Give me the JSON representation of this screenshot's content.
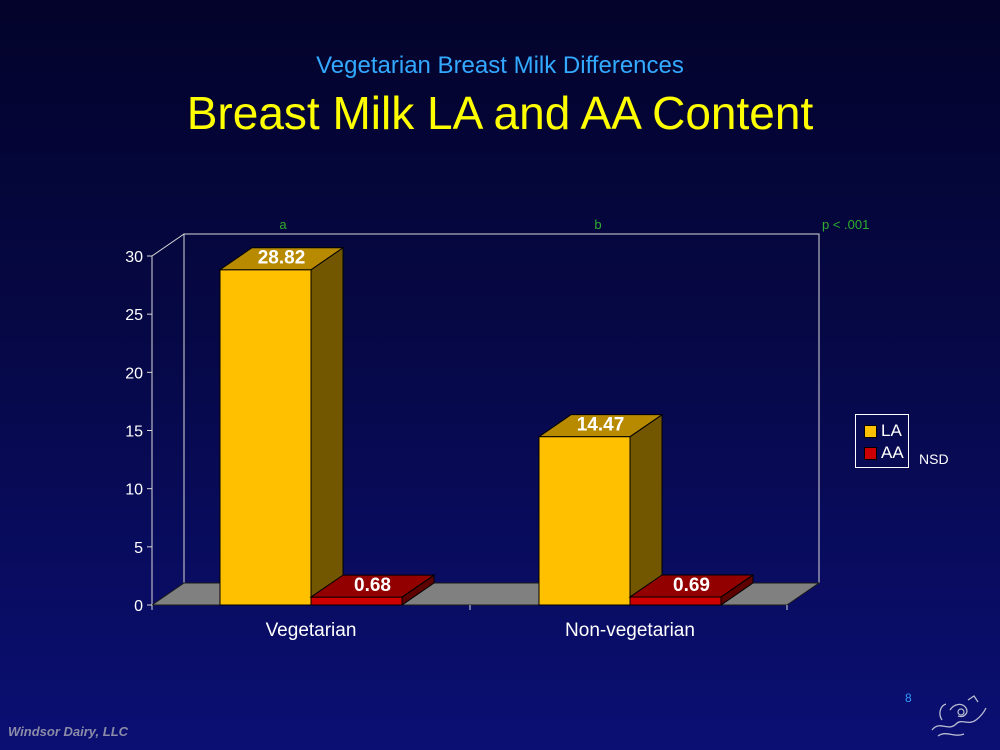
{
  "header": {
    "subtitle": "Vegetarian Breast Milk Differences",
    "title": "Breast Milk LA and AA Content"
  },
  "chart_data": {
    "type": "bar",
    "categories": [
      "Vegetarian",
      "Non-vegetarian"
    ],
    "series": [
      {
        "name": "LA",
        "values": [
          28.82,
          14.47
        ],
        "color": "#ffc000",
        "labels": [
          "28.82",
          "14.47"
        ]
      },
      {
        "name": "AA",
        "values": [
          0.68,
          0.69
        ],
        "color": "#cc0000",
        "labels": [
          "0.68",
          "0.69"
        ]
      }
    ],
    "ylim": [
      0,
      30
    ],
    "yticks": [
      "0",
      "5",
      "10",
      "15",
      "20",
      "25",
      "30"
    ],
    "annotations": {
      "a": "a",
      "b": "b",
      "p": "p < .001",
      "nsd": "NSD"
    },
    "legend_position": "right",
    "grid": false,
    "style": "3d-clustered-column"
  },
  "footer": {
    "company": "Windsor Dairy, LLC",
    "page": "8"
  }
}
